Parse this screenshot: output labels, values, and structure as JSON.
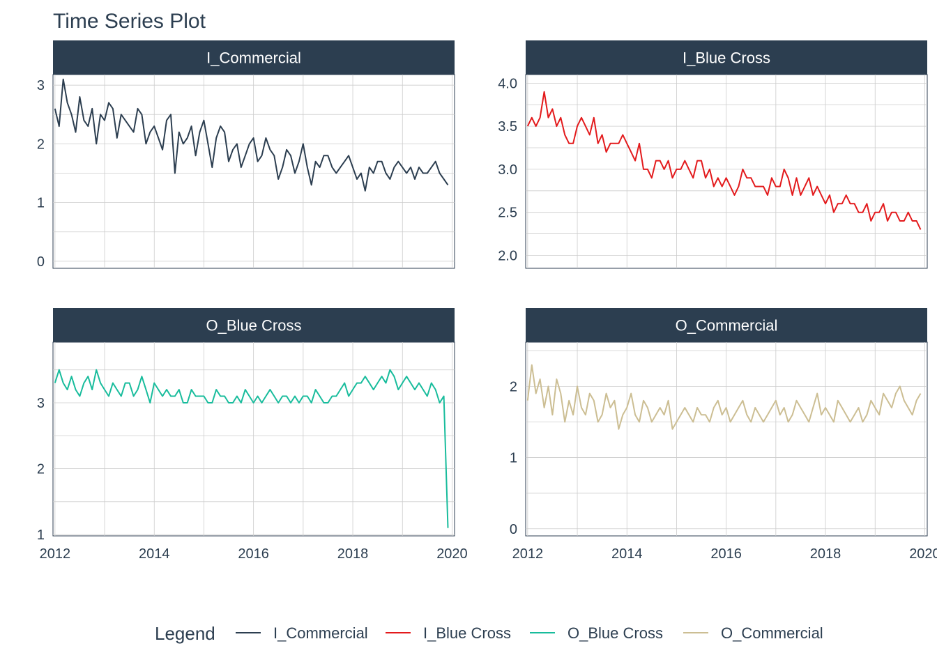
{
  "title": "Time Series Plot",
  "colors": {
    "I_Commercial": "#2c3e50",
    "I_Blue Cross": "#e31a1c",
    "O_Blue Cross": "#18bc9c",
    "O_Commercial": "#ccbe93",
    "strip_bg": "#2c3e50",
    "strip_text": "#ffffff",
    "grid": "#cccccc",
    "axis_text": "#2c3e50"
  },
  "chart_data": {
    "type": "line",
    "x_start": "2012-01",
    "x_end": "2019-12",
    "x_frequency": "monthly",
    "x_ticks": [
      "2012",
      "2014",
      "2016",
      "2018",
      "2020"
    ],
    "xlim": [
      2011.96,
      2020.05
    ],
    "grid": true,
    "legend": {
      "title": "Legend",
      "placement": "bottom",
      "entries": [
        "I_Commercial",
        "I_Blue Cross",
        "O_Blue Cross",
        "O_Commercial"
      ]
    },
    "series": [
      {
        "name": "I_Commercial",
        "panel": "I_Commercial",
        "ylim": [
          -0.12,
          3.18
        ],
        "y_ticks": [
          "0",
          "1",
          "2",
          "3"
        ],
        "values": [
          2.6,
          2.3,
          3.1,
          2.7,
          2.5,
          2.2,
          2.8,
          2.4,
          2.3,
          2.6,
          2.0,
          2.5,
          2.4,
          2.7,
          2.6,
          2.1,
          2.5,
          2.4,
          2.3,
          2.2,
          2.6,
          2.5,
          2.0,
          2.2,
          2.3,
          2.1,
          1.9,
          2.4,
          2.5,
          1.5,
          2.2,
          2.0,
          2.1,
          2.3,
          1.8,
          2.2,
          2.4,
          2.0,
          1.6,
          2.1,
          2.3,
          2.2,
          1.7,
          1.9,
          2.0,
          1.6,
          1.8,
          2.0,
          2.1,
          1.7,
          1.8,
          2.1,
          1.9,
          1.8,
          1.4,
          1.6,
          1.9,
          1.8,
          1.5,
          1.7,
          2.0,
          1.6,
          1.3,
          1.7,
          1.6,
          1.8,
          1.8,
          1.6,
          1.5,
          1.6,
          1.7,
          1.8,
          1.6,
          1.4,
          1.5,
          1.2,
          1.6,
          1.5,
          1.7,
          1.7,
          1.5,
          1.4,
          1.6,
          1.7,
          1.6,
          1.5,
          1.6,
          1.4,
          1.6,
          1.5,
          1.5,
          1.6,
          1.7,
          1.5,
          1.4,
          1.3
        ]
      },
      {
        "name": "I_Blue Cross",
        "panel": "I_Blue Cross",
        "ylim": [
          1.85,
          4.1
        ],
        "y_ticks": [
          "2.0",
          "2.5",
          "3.0",
          "3.5",
          "4.0"
        ],
        "values": [
          3.5,
          3.6,
          3.5,
          3.6,
          3.9,
          3.6,
          3.7,
          3.5,
          3.6,
          3.4,
          3.3,
          3.3,
          3.5,
          3.6,
          3.5,
          3.4,
          3.6,
          3.3,
          3.4,
          3.2,
          3.3,
          3.3,
          3.3,
          3.4,
          3.3,
          3.2,
          3.1,
          3.3,
          3.0,
          3.0,
          2.9,
          3.1,
          3.1,
          3.0,
          3.1,
          2.9,
          3.0,
          3.0,
          3.1,
          3.0,
          2.9,
          3.1,
          3.1,
          2.9,
          3.0,
          2.8,
          2.9,
          2.8,
          2.9,
          2.8,
          2.7,
          2.8,
          3.0,
          2.9,
          2.9,
          2.8,
          2.8,
          2.8,
          2.7,
          2.9,
          2.8,
          2.8,
          3.0,
          2.9,
          2.7,
          2.9,
          2.7,
          2.8,
          2.9,
          2.7,
          2.8,
          2.7,
          2.6,
          2.7,
          2.5,
          2.6,
          2.6,
          2.7,
          2.6,
          2.6,
          2.5,
          2.5,
          2.6,
          2.4,
          2.5,
          2.5,
          2.6,
          2.4,
          2.5,
          2.5,
          2.4,
          2.4,
          2.5,
          2.4,
          2.4,
          2.3
        ]
      },
      {
        "name": "O_Blue Cross",
        "panel": "O_Blue Cross",
        "ylim": [
          0.98,
          3.92
        ],
        "y_ticks": [
          "1",
          "2",
          "3"
        ],
        "values": [
          3.3,
          3.5,
          3.3,
          3.2,
          3.4,
          3.2,
          3.1,
          3.3,
          3.4,
          3.2,
          3.5,
          3.3,
          3.2,
          3.1,
          3.3,
          3.2,
          3.1,
          3.3,
          3.3,
          3.1,
          3.2,
          3.4,
          3.2,
          3.0,
          3.3,
          3.2,
          3.1,
          3.2,
          3.1,
          3.1,
          3.2,
          3.0,
          3.0,
          3.2,
          3.1,
          3.1,
          3.1,
          3.0,
          3.0,
          3.2,
          3.1,
          3.1,
          3.0,
          3.0,
          3.1,
          3.0,
          3.2,
          3.1,
          3.0,
          3.1,
          3.0,
          3.1,
          3.2,
          3.1,
          3.0,
          3.1,
          3.1,
          3.0,
          3.1,
          3.0,
          3.1,
          3.1,
          3.0,
          3.2,
          3.1,
          3.0,
          3.0,
          3.1,
          3.1,
          3.2,
          3.3,
          3.1,
          3.2,
          3.3,
          3.3,
          3.4,
          3.3,
          3.2,
          3.3,
          3.4,
          3.3,
          3.5,
          3.4,
          3.2,
          3.3,
          3.4,
          3.3,
          3.2,
          3.3,
          3.2,
          3.1,
          3.3,
          3.2,
          3.0,
          3.1,
          1.1
        ]
      },
      {
        "name": "O_Commercial",
        "panel": "O_Commercial",
        "ylim": [
          -0.1,
          2.62
        ],
        "y_ticks": [
          "0",
          "1",
          "2"
        ],
        "values": [
          1.8,
          2.3,
          1.9,
          2.1,
          1.7,
          2.0,
          1.6,
          2.1,
          1.9,
          1.5,
          1.8,
          1.6,
          2.0,
          1.7,
          1.6,
          1.9,
          1.8,
          1.5,
          1.6,
          1.9,
          1.7,
          1.8,
          1.4,
          1.6,
          1.7,
          1.9,
          1.6,
          1.5,
          1.8,
          1.7,
          1.5,
          1.6,
          1.7,
          1.6,
          1.8,
          1.4,
          1.5,
          1.6,
          1.7,
          1.6,
          1.5,
          1.7,
          1.6,
          1.6,
          1.5,
          1.7,
          1.8,
          1.6,
          1.7,
          1.5,
          1.6,
          1.7,
          1.8,
          1.6,
          1.5,
          1.7,
          1.6,
          1.5,
          1.6,
          1.7,
          1.8,
          1.6,
          1.7,
          1.5,
          1.6,
          1.8,
          1.7,
          1.6,
          1.5,
          1.7,
          1.9,
          1.6,
          1.7,
          1.6,
          1.5,
          1.8,
          1.7,
          1.6,
          1.5,
          1.6,
          1.7,
          1.5,
          1.6,
          1.8,
          1.7,
          1.6,
          1.9,
          1.8,
          1.7,
          1.9,
          2.0,
          1.8,
          1.7,
          1.6,
          1.8,
          1.9
        ]
      }
    ]
  }
}
